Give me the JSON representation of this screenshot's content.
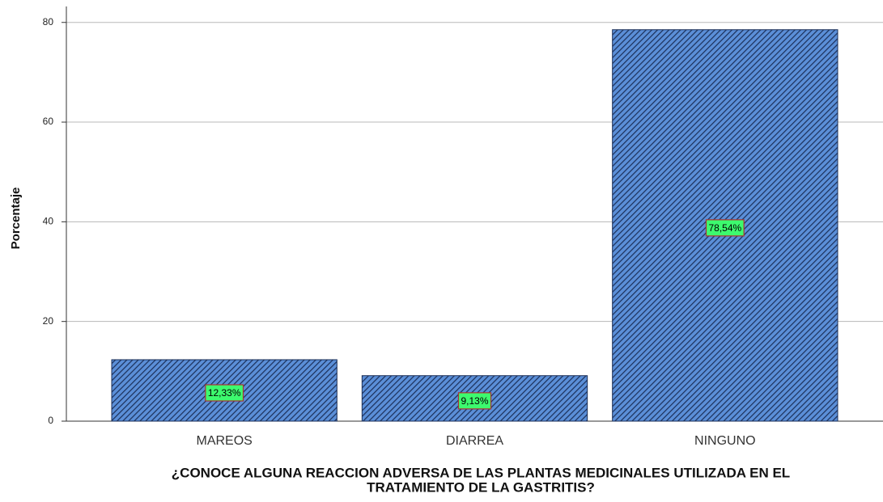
{
  "chart_data": {
    "type": "bar",
    "ylabel": "Porcentaje",
    "xlabel": [
      "¿CONOCE ALGUNA REACCION ADVERSA DE LAS PLANTAS MEDICINALES UTILIZADA EN EL",
      "TRATAMIENTO DE LA GASTRITIS?"
    ],
    "categories": [
      "MAREOS",
      "DIARREA",
      "NINGUNO"
    ],
    "values": [
      12.33,
      9.13,
      78.54
    ],
    "value_labels": [
      "12,33%",
      "9,13%",
      "78,54%"
    ],
    "color": "#4f80c9",
    "ylim": [
      0,
      83.2
    ],
    "yticks": [
      0,
      20,
      40,
      60,
      80
    ],
    "grid": true
  }
}
